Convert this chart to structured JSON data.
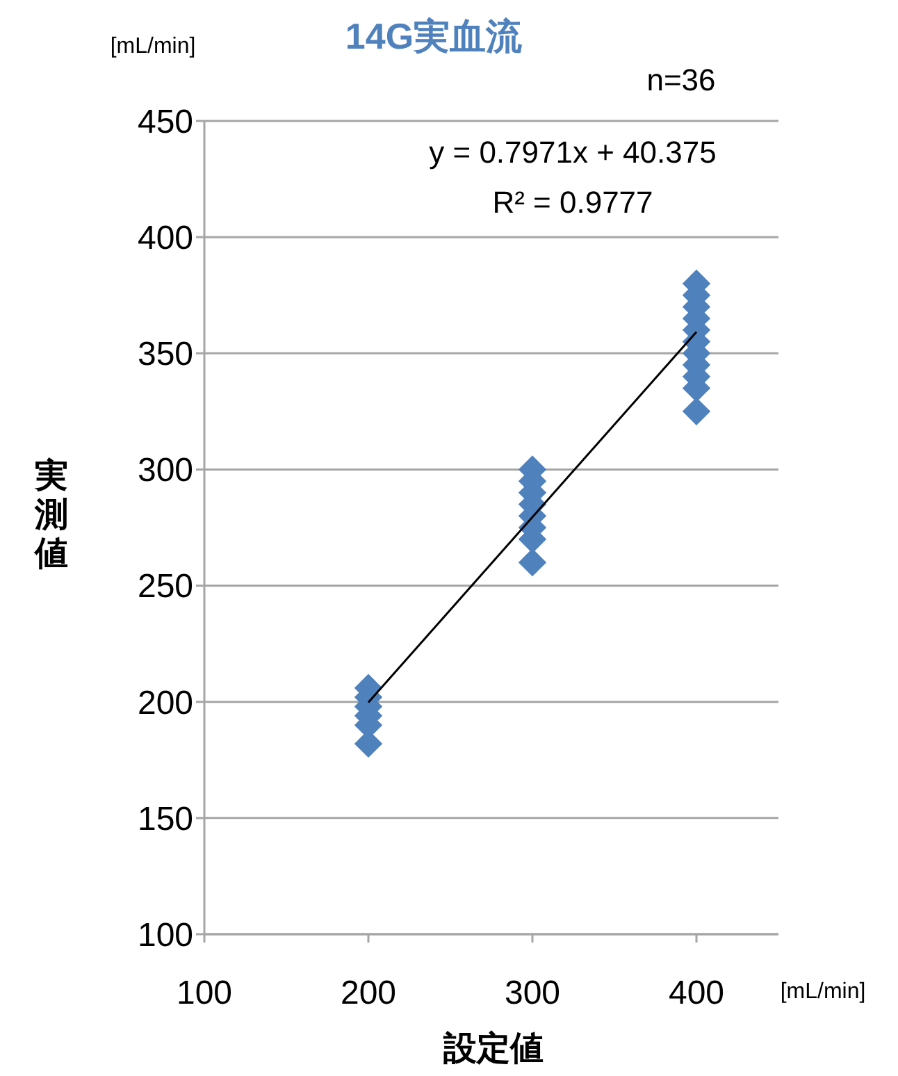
{
  "chart_data": {
    "type": "scatter",
    "title": "14G実血流",
    "xlabel": "設定値",
    "ylabel": "実測値",
    "annotations": [
      "n=36",
      "y = 0.7971x + 40.375",
      "R² = 0.9777",
      "[mL/min]",
      "[mL/min]"
    ],
    "xlim": [
      100,
      450
    ],
    "xticks": [
      100,
      200,
      300,
      400
    ],
    "ylim": [
      100,
      450
    ],
    "yticks": [
      100,
      150,
      200,
      250,
      300,
      350,
      400,
      450
    ],
    "grid": "y",
    "marker": "diamond",
    "series": [
      {
        "color": "#4f81bd",
        "x": [
          200,
          200,
          200,
          200,
          200,
          200,
          300,
          300,
          300,
          300,
          300,
          300,
          300,
          300,
          400,
          400,
          400,
          400,
          400,
          400,
          400,
          400,
          400,
          400,
          400
        ],
        "values": [
          182,
          190,
          194,
          198,
          202,
          206,
          260,
          270,
          275,
          280,
          285,
          290,
          295,
          300,
          325,
          335,
          340,
          345,
          350,
          355,
          360,
          365,
          370,
          375,
          380
        ]
      },
      {
        "type": "line",
        "color": "#000000",
        "x": [
          200,
          400
        ],
        "values": [
          199.8,
          359.2
        ],
        "marker": "none"
      }
    ]
  }
}
